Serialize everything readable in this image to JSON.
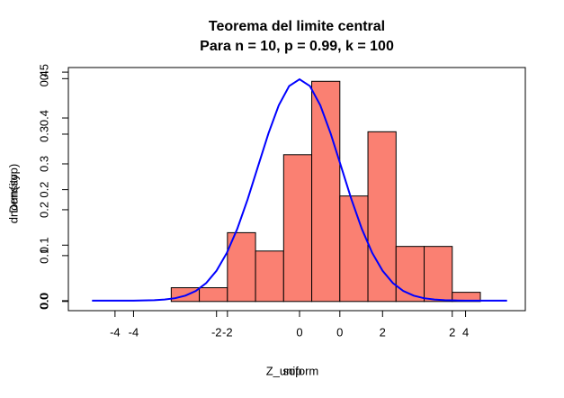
{
  "chart_data": [
    {
      "type": "histogram",
      "title": "Teorema del limite central",
      "subtitle": "Para n = 10, p = 0.99, k = 100",
      "x_label": "Z_uniform",
      "y_label": "Density",
      "bins": [
        -3,
        -2.5,
        -2,
        -1.5,
        -1,
        -0.5,
        0,
        0.5,
        1,
        1.5,
        2,
        2.5
      ],
      "values": [
        0.03,
        0.03,
        0.15,
        0.11,
        0.32,
        0.48,
        0.23,
        0.37,
        0.12,
        0.12,
        0.02
      ],
      "color": "#fa8072",
      "xlim": [
        -4.83,
        3.3
      ],
      "ylim": [
        -0.02,
        0.51
      ],
      "xticks": [
        -4,
        -2,
        0,
        2
      ],
      "yticks": [
        {
          "value": 0,
          "label": "0.0"
        },
        0.1,
        0.2,
        0.3,
        0.4,
        0.5
      ]
    },
    {
      "type": "line",
      "x_label": "sop",
      "y_label": "dnorm(sop)",
      "x": [
        -5,
        -4.75,
        -4.5,
        -4.25,
        -4,
        -3.75,
        -3.5,
        -3.25,
        -3,
        -2.75,
        -2.5,
        -2.25,
        -2,
        -1.75,
        -1.5,
        -1.25,
        -1,
        -0.75,
        -0.5,
        -0.25,
        0,
        0.25,
        0.5,
        0.75,
        1,
        1.25,
        1.5,
        1.75,
        2,
        2.25,
        2.5,
        2.75,
        3,
        3.25,
        3.5,
        3.75,
        4,
        4.25,
        4.5,
        4.75,
        5
      ],
      "values": [
        0,
        0,
        0,
        0,
        0.0001,
        0.0004,
        0.0009,
        0.002,
        0.0044,
        0.0091,
        0.0175,
        0.0317,
        0.054,
        0.0863,
        0.1295,
        0.1826,
        0.242,
        0.3011,
        0.3521,
        0.3867,
        0.3989,
        0.3867,
        0.3521,
        0.3011,
        0.242,
        0.1826,
        0.1295,
        0.0863,
        0.054,
        0.0317,
        0.0175,
        0.0091,
        0.0044,
        0.002,
        0.0009,
        0.0004,
        0.0001,
        0,
        0,
        0,
        0
      ],
      "color": "#0000ff",
      "xlim": [
        -5.57,
        5.44
      ],
      "ylim": [
        -0.018,
        0.42
      ],
      "xticks": [
        -4,
        -2,
        0,
        2,
        4
      ],
      "yticks": [
        {
          "value": 0,
          "label": "0.0"
        },
        0.1,
        0.2,
        0.3,
        0.4
      ]
    }
  ]
}
